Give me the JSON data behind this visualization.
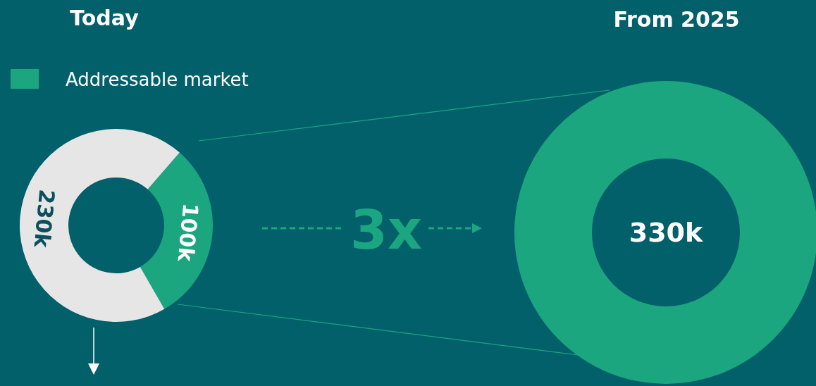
{
  "chart_data": [
    {
      "type": "donut",
      "title": "Today",
      "categories": [
        "Addressable market",
        null
      ],
      "values": [
        100,
        230
      ],
      "colors": [
        "#1ba680",
        "#e6e6e6"
      ],
      "value_labels": [
        "100k",
        "230k"
      ],
      "legend": "top"
    },
    {
      "type": "donut",
      "title": "From 2025",
      "categories": [
        null
      ],
      "values": [
        330
      ],
      "colors": [
        "#1ba680"
      ],
      "value_labels": [
        "330k"
      ],
      "annotations": [
        "3x"
      ]
    }
  ]
}
